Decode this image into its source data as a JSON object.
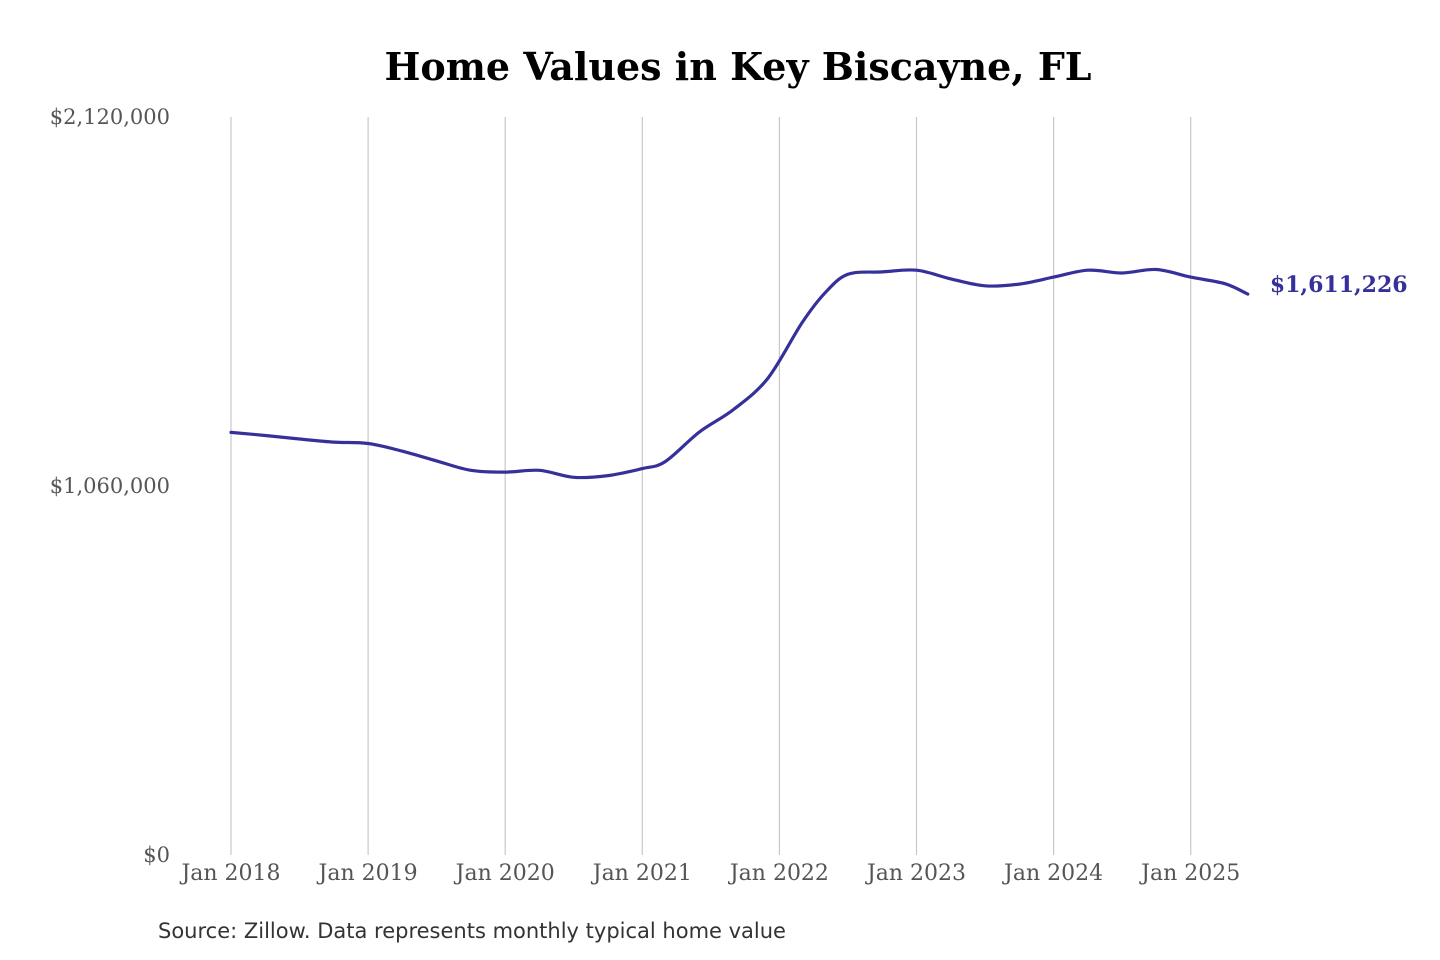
{
  "chart_data": {
    "type": "line",
    "title": "Home Values in Key Biscayne, FL",
    "xlabel": "",
    "ylabel": "",
    "ylim": [
      0,
      2120000
    ],
    "yticks": [
      {
        "value": 2120000,
        "label": "$2,120,000"
      },
      {
        "value": 1060000,
        "label": "$1,060,000"
      },
      {
        "value": 0,
        "label": "$0"
      }
    ],
    "xticks": [
      {
        "year": 2018,
        "label": "Jan 2018"
      },
      {
        "year": 2019,
        "label": "Jan 2019"
      },
      {
        "year": 2020,
        "label": "Jan 2020"
      },
      {
        "year": 2021,
        "label": "Jan 2021"
      },
      {
        "year": 2022,
        "label": "Jan 2022"
      },
      {
        "year": 2023,
        "label": "Jan 2023"
      },
      {
        "year": 2024,
        "label": "Jan 2024"
      },
      {
        "year": 2025,
        "label": "Jan 2025"
      }
    ],
    "grid": "vertical",
    "series": [
      {
        "color": "#35309a",
        "end_label": "$1,611,226",
        "points": [
          {
            "x": "2018-01",
            "y": 1214000
          },
          {
            "x": "2018-04",
            "y": 1205000
          },
          {
            "x": "2018-07",
            "y": 1195000
          },
          {
            "x": "2018-10",
            "y": 1186000
          },
          {
            "x": "2019-01",
            "y": 1182000
          },
          {
            "x": "2019-04",
            "y": 1160000
          },
          {
            "x": "2019-07",
            "y": 1132000
          },
          {
            "x": "2019-10",
            "y": 1105000
          },
          {
            "x": "2020-01",
            "y": 1100000
          },
          {
            "x": "2020-04",
            "y": 1105000
          },
          {
            "x": "2020-07",
            "y": 1085000
          },
          {
            "x": "2020-10",
            "y": 1090000
          },
          {
            "x": "2021-01",
            "y": 1110000
          },
          {
            "x": "2021-03",
            "y": 1130000
          },
          {
            "x": "2021-06",
            "y": 1215000
          },
          {
            "x": "2021-09",
            "y": 1280000
          },
          {
            "x": "2021-12",
            "y": 1370000
          },
          {
            "x": "2022-03",
            "y": 1530000
          },
          {
            "x": "2022-05",
            "y": 1615000
          },
          {
            "x": "2022-07",
            "y": 1668000
          },
          {
            "x": "2022-10",
            "y": 1675000
          },
          {
            "x": "2023-01",
            "y": 1680000
          },
          {
            "x": "2023-04",
            "y": 1655000
          },
          {
            "x": "2023-07",
            "y": 1635000
          },
          {
            "x": "2023-10",
            "y": 1640000
          },
          {
            "x": "2024-01",
            "y": 1660000
          },
          {
            "x": "2024-04",
            "y": 1680000
          },
          {
            "x": "2024-07",
            "y": 1672000
          },
          {
            "x": "2024-10",
            "y": 1682000
          },
          {
            "x": "2025-01",
            "y": 1660000
          },
          {
            "x": "2025-04",
            "y": 1641000
          },
          {
            "x": "2025-06",
            "y": 1611226
          }
        ]
      }
    ]
  },
  "source": "Source: Zillow. Data represents monthly typical home value"
}
